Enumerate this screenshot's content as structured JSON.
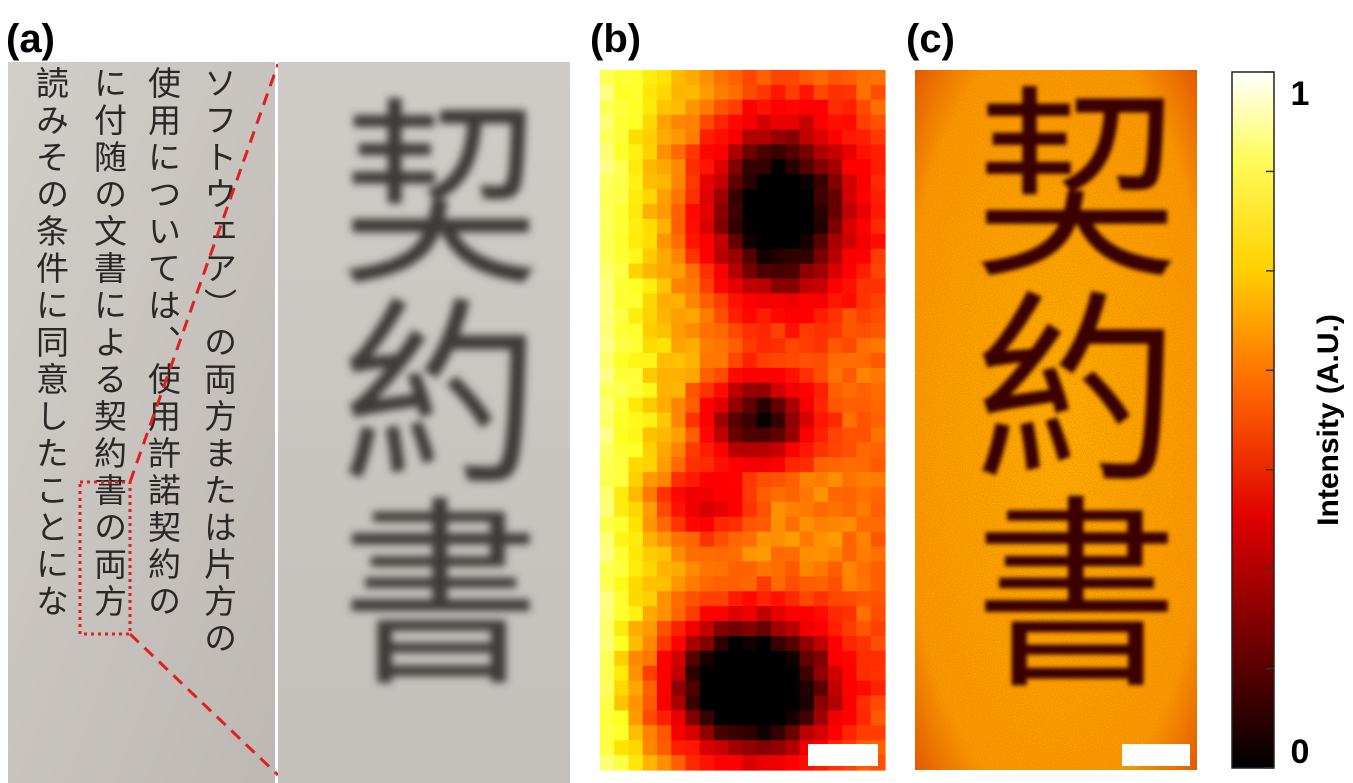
{
  "panels": {
    "a": {
      "label": "(a)",
      "columns": [
        "ソフトウェア）の両方または片方の",
        "使用については、使用許諾契約の",
        "に付随の文書による契約書の両方",
        "読みその条件に同意したことにな"
      ],
      "zoom_text": "契約書"
    },
    "b": {
      "label": "(b)"
    },
    "c": {
      "label": "(c)",
      "text": "契約書"
    }
  },
  "colorbar": {
    "label": "Intensity (A.U.)",
    "lim": [
      0,
      1
    ],
    "ticks": [
      1,
      0
    ]
  }
}
